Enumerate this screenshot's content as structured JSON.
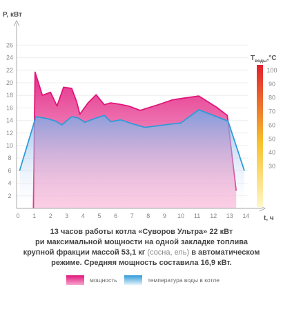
{
  "chart_data": {
    "type": "area",
    "xlabel": "t, ч",
    "ylabel": "P, кВт",
    "xlim": [
      0,
      14.6
    ],
    "ylim": [
      0,
      27
    ],
    "x_ticks": [
      0,
      1,
      2,
      3,
      4,
      5,
      6,
      7,
      8,
      9,
      10,
      11,
      12,
      13,
      14
    ],
    "y_ticks": [
      2,
      4,
      6,
      8,
      10,
      12,
      14,
      16,
      18,
      20,
      22,
      24,
      26
    ],
    "series": [
      {
        "name": "мощность",
        "color": "#e0157a",
        "x": [
          0.95,
          1.05,
          1.5,
          2.0,
          2.4,
          2.8,
          3.3,
          3.6,
          3.8,
          4.3,
          4.8,
          5.3,
          5.7,
          6.2,
          6.8,
          7.5,
          8.6,
          9.5,
          10.3,
          11.1,
          12.2,
          12.85,
          13.4
        ],
        "y": [
          0,
          21.7,
          18.0,
          18.5,
          16.3,
          19.3,
          19.1,
          17.0,
          15.0,
          16.8,
          18.1,
          16.5,
          16.8,
          16.6,
          16.3,
          15.6,
          16.5,
          17.3,
          17.6,
          17.9,
          16.1,
          14.8,
          2.8
        ]
      },
      {
        "name": "температура воды в котле",
        "color": "#2f9bd8",
        "x": [
          0.1,
          1.1,
          1.8,
          2.3,
          2.7,
          3.3,
          3.7,
          4.1,
          4.7,
          5.3,
          5.7,
          6.3,
          7.0,
          7.8,
          9.0,
          10.0,
          11.1,
          12.2,
          12.9,
          13.9
        ],
        "y": [
          6.0,
          14.6,
          14.3,
          13.9,
          13.3,
          14.6,
          14.4,
          13.7,
          14.3,
          14.8,
          13.8,
          14.1,
          13.5,
          12.9,
          13.3,
          13.6,
          15.7,
          14.6,
          13.9,
          6.0
        ]
      }
    ],
    "secondary_axis": {
      "label_main": "T",
      "label_sub": "воды",
      "label_unit": ",°C",
      "ticks": [
        30,
        40,
        50,
        60,
        70,
        80,
        90,
        100
      ],
      "range": [
        30,
        100
      ],
      "gradient": [
        "#fff6c8",
        "#f7c22b",
        "#e31e2d"
      ]
    }
  },
  "caption": {
    "line1": "13 часов работы котла «Суворов Ультра» 22 кВт",
    "line2": "ри максимальной мощности на одной закладке  топлива",
    "line3_a": "крупной фракции массой 53,1 кг ",
    "line3_b": "(сосна, ель)",
    "line3_c": " в автоматическом",
    "line4": "режиме. Средняя мощность составила 16,9 кВт."
  },
  "legend": {
    "power_label": "мощность",
    "temp_label": "температура воды в котле",
    "power_color": "#e0157a",
    "temp_color": "#2f9bd8"
  }
}
